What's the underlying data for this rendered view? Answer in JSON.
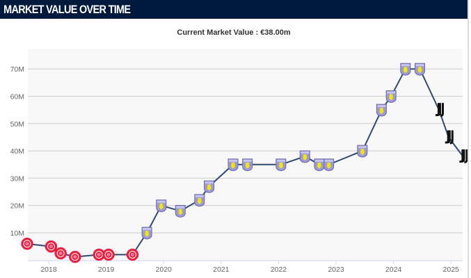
{
  "header": {
    "title": "MARKET VALUE OVER TIME"
  },
  "subtitle": "Current Market Value : €38.00m",
  "chart_data": {
    "type": "line",
    "title": "MARKET VALUE OVER TIME",
    "subtitle": "Current Market Value : €38.00m",
    "xlabel": "",
    "ylabel": "",
    "x_ticks": [
      "2018",
      "2019",
      "2020",
      "2021",
      "2022",
      "2023",
      "2024",
      "2025"
    ],
    "y_ticks": [
      "10M",
      "20M",
      "30M",
      "40M",
      "50M",
      "60M",
      "70M"
    ],
    "ylim": [
      0,
      75
    ],
    "xlim": [
      "2017-08",
      "2025-04"
    ],
    "grid": "horizontal",
    "unit": "M",
    "line_color": "#2e4a6f",
    "plot_background": "#f8f8f8",
    "points": [
      {
        "date": "2017-08",
        "value": 6,
        "club": "girona-crest"
      },
      {
        "date": "2018-01",
        "value": 5,
        "club": "girona-crest"
      },
      {
        "date": "2018-03",
        "value": 2.5,
        "club": "girona-crest"
      },
      {
        "date": "2018-06",
        "value": 1.2,
        "club": "girona-crest"
      },
      {
        "date": "2018-11",
        "value": 2,
        "club": "girona-crest"
      },
      {
        "date": "2019-01",
        "value": 2,
        "club": "girona-crest"
      },
      {
        "date": "2019-06",
        "value": 2,
        "club": "girona-crest"
      },
      {
        "date": "2019-09",
        "value": 10,
        "club": "aston-villa-crest"
      },
      {
        "date": "2019-12",
        "value": 20,
        "club": "aston-villa-crest"
      },
      {
        "date": "2020-04",
        "value": 18,
        "club": "aston-villa-crest"
      },
      {
        "date": "2020-08",
        "value": 22,
        "club": "aston-villa-crest"
      },
      {
        "date": "2020-10",
        "value": 27,
        "club": "aston-villa-crest"
      },
      {
        "date": "2021-03",
        "value": 35,
        "club": "aston-villa-crest"
      },
      {
        "date": "2021-06",
        "value": 35,
        "club": "aston-villa-crest"
      },
      {
        "date": "2022-01",
        "value": 35,
        "club": "aston-villa-crest"
      },
      {
        "date": "2022-06",
        "value": 38,
        "club": "aston-villa-crest"
      },
      {
        "date": "2022-09",
        "value": 35,
        "club": "aston-villa-crest"
      },
      {
        "date": "2022-11",
        "value": 35,
        "club": "aston-villa-crest"
      },
      {
        "date": "2023-06",
        "value": 40,
        "club": "aston-villa-crest"
      },
      {
        "date": "2023-10",
        "value": 55,
        "club": "aston-villa-crest"
      },
      {
        "date": "2023-12",
        "value": 60,
        "club": "aston-villa-crest"
      },
      {
        "date": "2024-03",
        "value": 70,
        "club": "aston-villa-crest"
      },
      {
        "date": "2024-06",
        "value": 70,
        "club": "aston-villa-crest"
      },
      {
        "date": "2024-10",
        "value": 55,
        "club": "juventus-crest"
      },
      {
        "date": "2024-12",
        "value": 45,
        "club": "juventus-crest"
      },
      {
        "date": "2025-03",
        "value": 38,
        "club": "juventus-crest"
      }
    ]
  }
}
